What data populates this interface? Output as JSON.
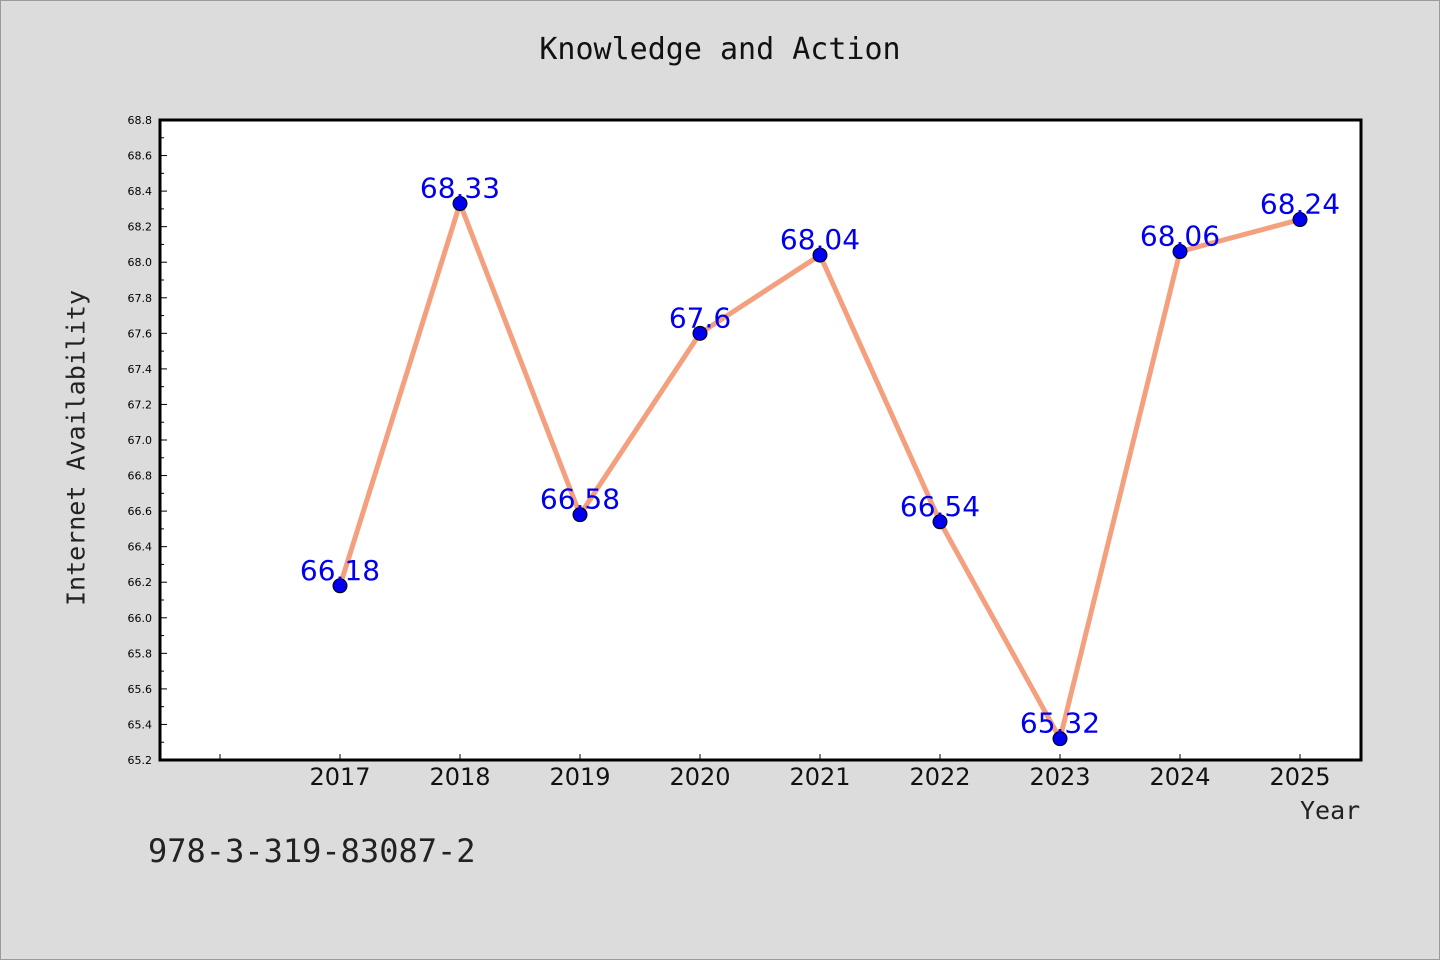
{
  "chart_data": {
    "type": "line",
    "title": "Knowledge and Action",
    "xlabel": "Year",
    "ylabel": "Internet Availability",
    "categories": [
      "2017",
      "2018",
      "2019",
      "2020",
      "2021",
      "2022",
      "2023",
      "2024",
      "2025"
    ],
    "values": [
      66.18,
      68.33,
      66.58,
      67.6,
      68.04,
      66.54,
      65.32,
      68.06,
      68.24
    ],
    "data_labels": [
      "66.18",
      "68.33",
      "66.58",
      "67.6",
      "68.04",
      "66.54",
      "65.32",
      "68.06",
      "68.24"
    ],
    "ylim": [
      65.2,
      68.8
    ],
    "yticks": [
      "65.2",
      "65.4",
      "65.6",
      "65.8",
      "66.0",
      "66.2",
      "66.4",
      "66.6",
      "66.8",
      "67.0",
      "67.2",
      "67.4",
      "67.6",
      "67.8",
      "68.0",
      "68.2",
      "68.4",
      "68.6",
      "68.8"
    ],
    "grid": false,
    "line_color": "#f4a07e",
    "marker_color": "#0000ee",
    "label_color": "#0000ee"
  },
  "footnote": "978-3-319-83087-2"
}
